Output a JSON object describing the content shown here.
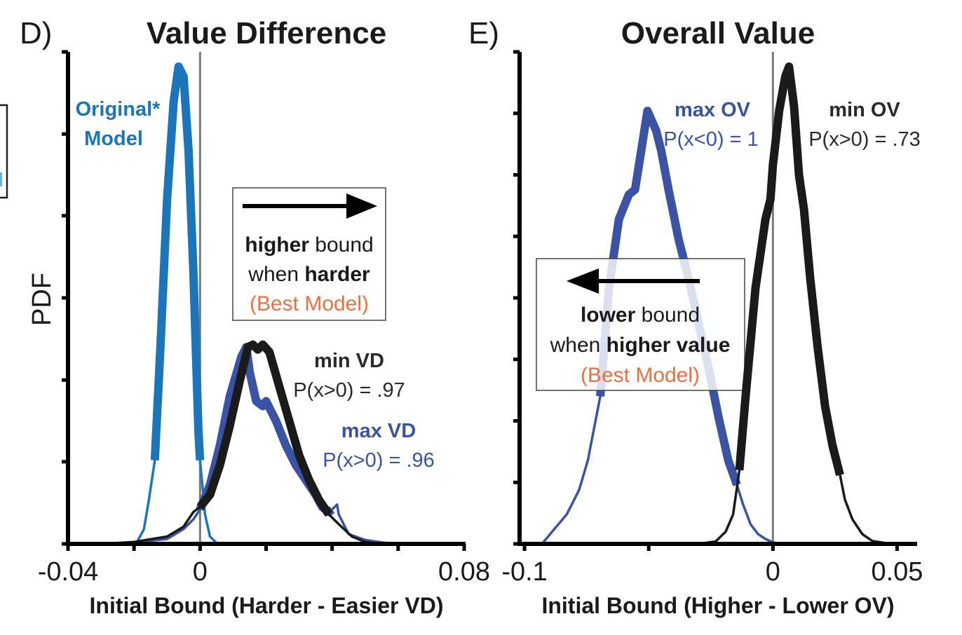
{
  "chart_data": [
    {
      "panel_label": "D)",
      "type": "line",
      "title": "Value Difference",
      "xlabel": "Initial Bound (Harder - Easier VD)",
      "ylabel": "PDF",
      "xlim": [
        -0.04,
        0.08
      ],
      "ylim": [
        0,
        1
      ],
      "x_ticks": [
        -0.04,
        -0.02,
        0,
        0.02,
        0.04,
        0.06,
        0.08
      ],
      "x_tick_labels": [
        "-0.04",
        "",
        "0",
        "",
        "",
        "",
        "0.08"
      ],
      "y_ticks": [
        0,
        0.167,
        0.333,
        0.5,
        0.667,
        0.833,
        1
      ],
      "y_tick_labels": [
        "",
        "",
        "",
        "",
        "",
        "",
        ""
      ],
      "reference_line_x": 0,
      "series": [
        {
          "name": "Original* Model",
          "color": "#1b75bb",
          "ci": [
            -0.0137,
            0.0
          ],
          "x": [
            -0.022,
            -0.019,
            -0.017,
            -0.0155,
            -0.0137,
            -0.012,
            -0.01,
            -0.008,
            -0.0065,
            -0.005,
            -0.0035,
            -0.002,
            -0.0005,
            0.0,
            0.0015,
            0.003,
            0.005,
            0.008
          ],
          "y": [
            0,
            0.005,
            0.03,
            0.09,
            0.17,
            0.4,
            0.7,
            0.9,
            0.97,
            0.95,
            0.8,
            0.55,
            0.23,
            0.17,
            0.06,
            0.015,
            0.002,
            0
          ]
        },
        {
          "name": "max VD",
          "color": "#3a53a4",
          "ci": [
            0.0,
            0.04
          ],
          "x": [
            -0.03,
            -0.02,
            -0.01,
            -0.005,
            -0.002,
            0.0,
            0.003,
            0.006,
            0.009,
            0.0125,
            0.014,
            0.015,
            0.017,
            0.019,
            0.02,
            0.023,
            0.026,
            0.029,
            0.032,
            0.035,
            0.037,
            0.039,
            0.04,
            0.0415,
            0.042,
            0.045,
            0.05,
            0.055,
            0.06
          ],
          "y": [
            0,
            0.003,
            0.01,
            0.03,
            0.05,
            0.07,
            0.12,
            0.2,
            0.3,
            0.38,
            0.4,
            0.35,
            0.29,
            0.28,
            0.29,
            0.25,
            0.2,
            0.16,
            0.13,
            0.1,
            0.075,
            0.065,
            0.07,
            0.08,
            0.06,
            0.02,
            0.008,
            0.003,
            0
          ]
        },
        {
          "name": "min VD",
          "color": "#1a1a1a",
          "ci": [
            0.0,
            0.039
          ],
          "x": [
            -0.03,
            -0.02,
            -0.01,
            -0.005,
            -0.002,
            0.0,
            0.003,
            0.006,
            0.009,
            0.012,
            0.0145,
            0.016,
            0.0175,
            0.019,
            0.021,
            0.024,
            0.027,
            0.03,
            0.033,
            0.036,
            0.039,
            0.042,
            0.046,
            0.05,
            0.055
          ],
          "y": [
            0,
            0.004,
            0.015,
            0.035,
            0.065,
            0.075,
            0.1,
            0.16,
            0.24,
            0.33,
            0.4,
            0.405,
            0.395,
            0.405,
            0.39,
            0.32,
            0.25,
            0.18,
            0.13,
            0.09,
            0.06,
            0.04,
            0.015,
            0.004,
            0
          ]
        }
      ],
      "annotations": [
        {
          "text_bold": "Original*",
          "text_2": "Model",
          "color": "#1b75bb"
        },
        {
          "title": "min VD",
          "stat": "P(x>0) = .97",
          "color": "#1a1a1a"
        },
        {
          "title": "max VD",
          "stat": "P(x>0) = .96",
          "color": "#3a53a4"
        }
      ],
      "callout": {
        "arrow_direction": "right",
        "line1_bold": "higher",
        "line1_rest": " bound",
        "line2_plain": "when ",
        "line2_bold": "harder",
        "line3": "(Best Model)",
        "line3_color": "#e8703c"
      }
    },
    {
      "panel_label": "E)",
      "type": "line",
      "title": "Overall Value",
      "xlabel": "Initial Bound (Higher - Lower OV)",
      "ylabel": "",
      "xlim": [
        -0.102,
        0.0575
      ],
      "ylim": [
        0,
        1
      ],
      "x_ticks": [
        -0.1,
        -0.05,
        0,
        0.05
      ],
      "x_tick_labels": [
        "-0.1",
        "",
        "0",
        "0.05"
      ],
      "y_ticks": [
        0,
        0.125,
        0.25,
        0.375,
        0.5,
        0.625,
        0.75,
        0.875,
        1
      ],
      "y_tick_labels": [
        "",
        "",
        "",
        "",
        "",
        "",
        "",
        "",
        ""
      ],
      "reference_line_x": 0,
      "series": [
        {
          "name": "max OV",
          "color": "#3a53a4",
          "ci": [
            -0.0695,
            -0.0145
          ],
          "x": [
            -0.102,
            -0.093,
            -0.088,
            -0.083,
            -0.078,
            -0.0745,
            -0.0695,
            -0.066,
            -0.062,
            -0.058,
            -0.0555,
            -0.053,
            -0.0505,
            -0.047,
            -0.045,
            -0.042,
            -0.038,
            -0.034,
            -0.03,
            -0.026,
            -0.022,
            -0.018,
            -0.0145,
            -0.012,
            -0.009,
            -0.006,
            -0.003,
            0.0,
            0.003
          ],
          "y": [
            0,
            0,
            0.03,
            0.06,
            0.11,
            0.17,
            0.3,
            0.52,
            0.66,
            0.71,
            0.72,
            0.8,
            0.88,
            0.84,
            0.8,
            0.72,
            0.62,
            0.54,
            0.45,
            0.36,
            0.26,
            0.17,
            0.12,
            0.08,
            0.04,
            0.02,
            0.01,
            0.003,
            0
          ]
        },
        {
          "name": "min OV",
          "color": "#1a1a1a",
          "ci": [
            -0.0135,
            0.027
          ],
          "x": [
            -0.03,
            -0.023,
            -0.019,
            -0.016,
            -0.0135,
            -0.011,
            -0.007,
            -0.003,
            -0.001,
            0.0,
            0.0025,
            0.005,
            0.0065,
            0.0085,
            0.0105,
            0.0125,
            0.015,
            0.018,
            0.021,
            0.024,
            0.027,
            0.029,
            0.032,
            0.036,
            0.04,
            0.045,
            0.05
          ],
          "y": [
            0,
            0.005,
            0.025,
            0.06,
            0.15,
            0.3,
            0.52,
            0.66,
            0.7,
            0.77,
            0.88,
            0.95,
            0.97,
            0.89,
            0.75,
            0.68,
            0.54,
            0.4,
            0.28,
            0.2,
            0.14,
            0.09,
            0.05,
            0.02,
            0.006,
            0.002,
            0
          ]
        }
      ],
      "annotations": [
        {
          "title": "max OV",
          "stat": "P(x<0) = 1",
          "color": "#3a53a4"
        },
        {
          "title": "min OV",
          "stat": "P(x>0) = .73",
          "color": "#1a1a1a"
        }
      ],
      "callout": {
        "arrow_direction": "left",
        "line1_bold": "lower",
        "line1_rest": " bound",
        "line2_plain": "when ",
        "line2_bold": "higher value",
        "line3": "(Best Model)",
        "line3_color": "#e8703c"
      }
    }
  ]
}
